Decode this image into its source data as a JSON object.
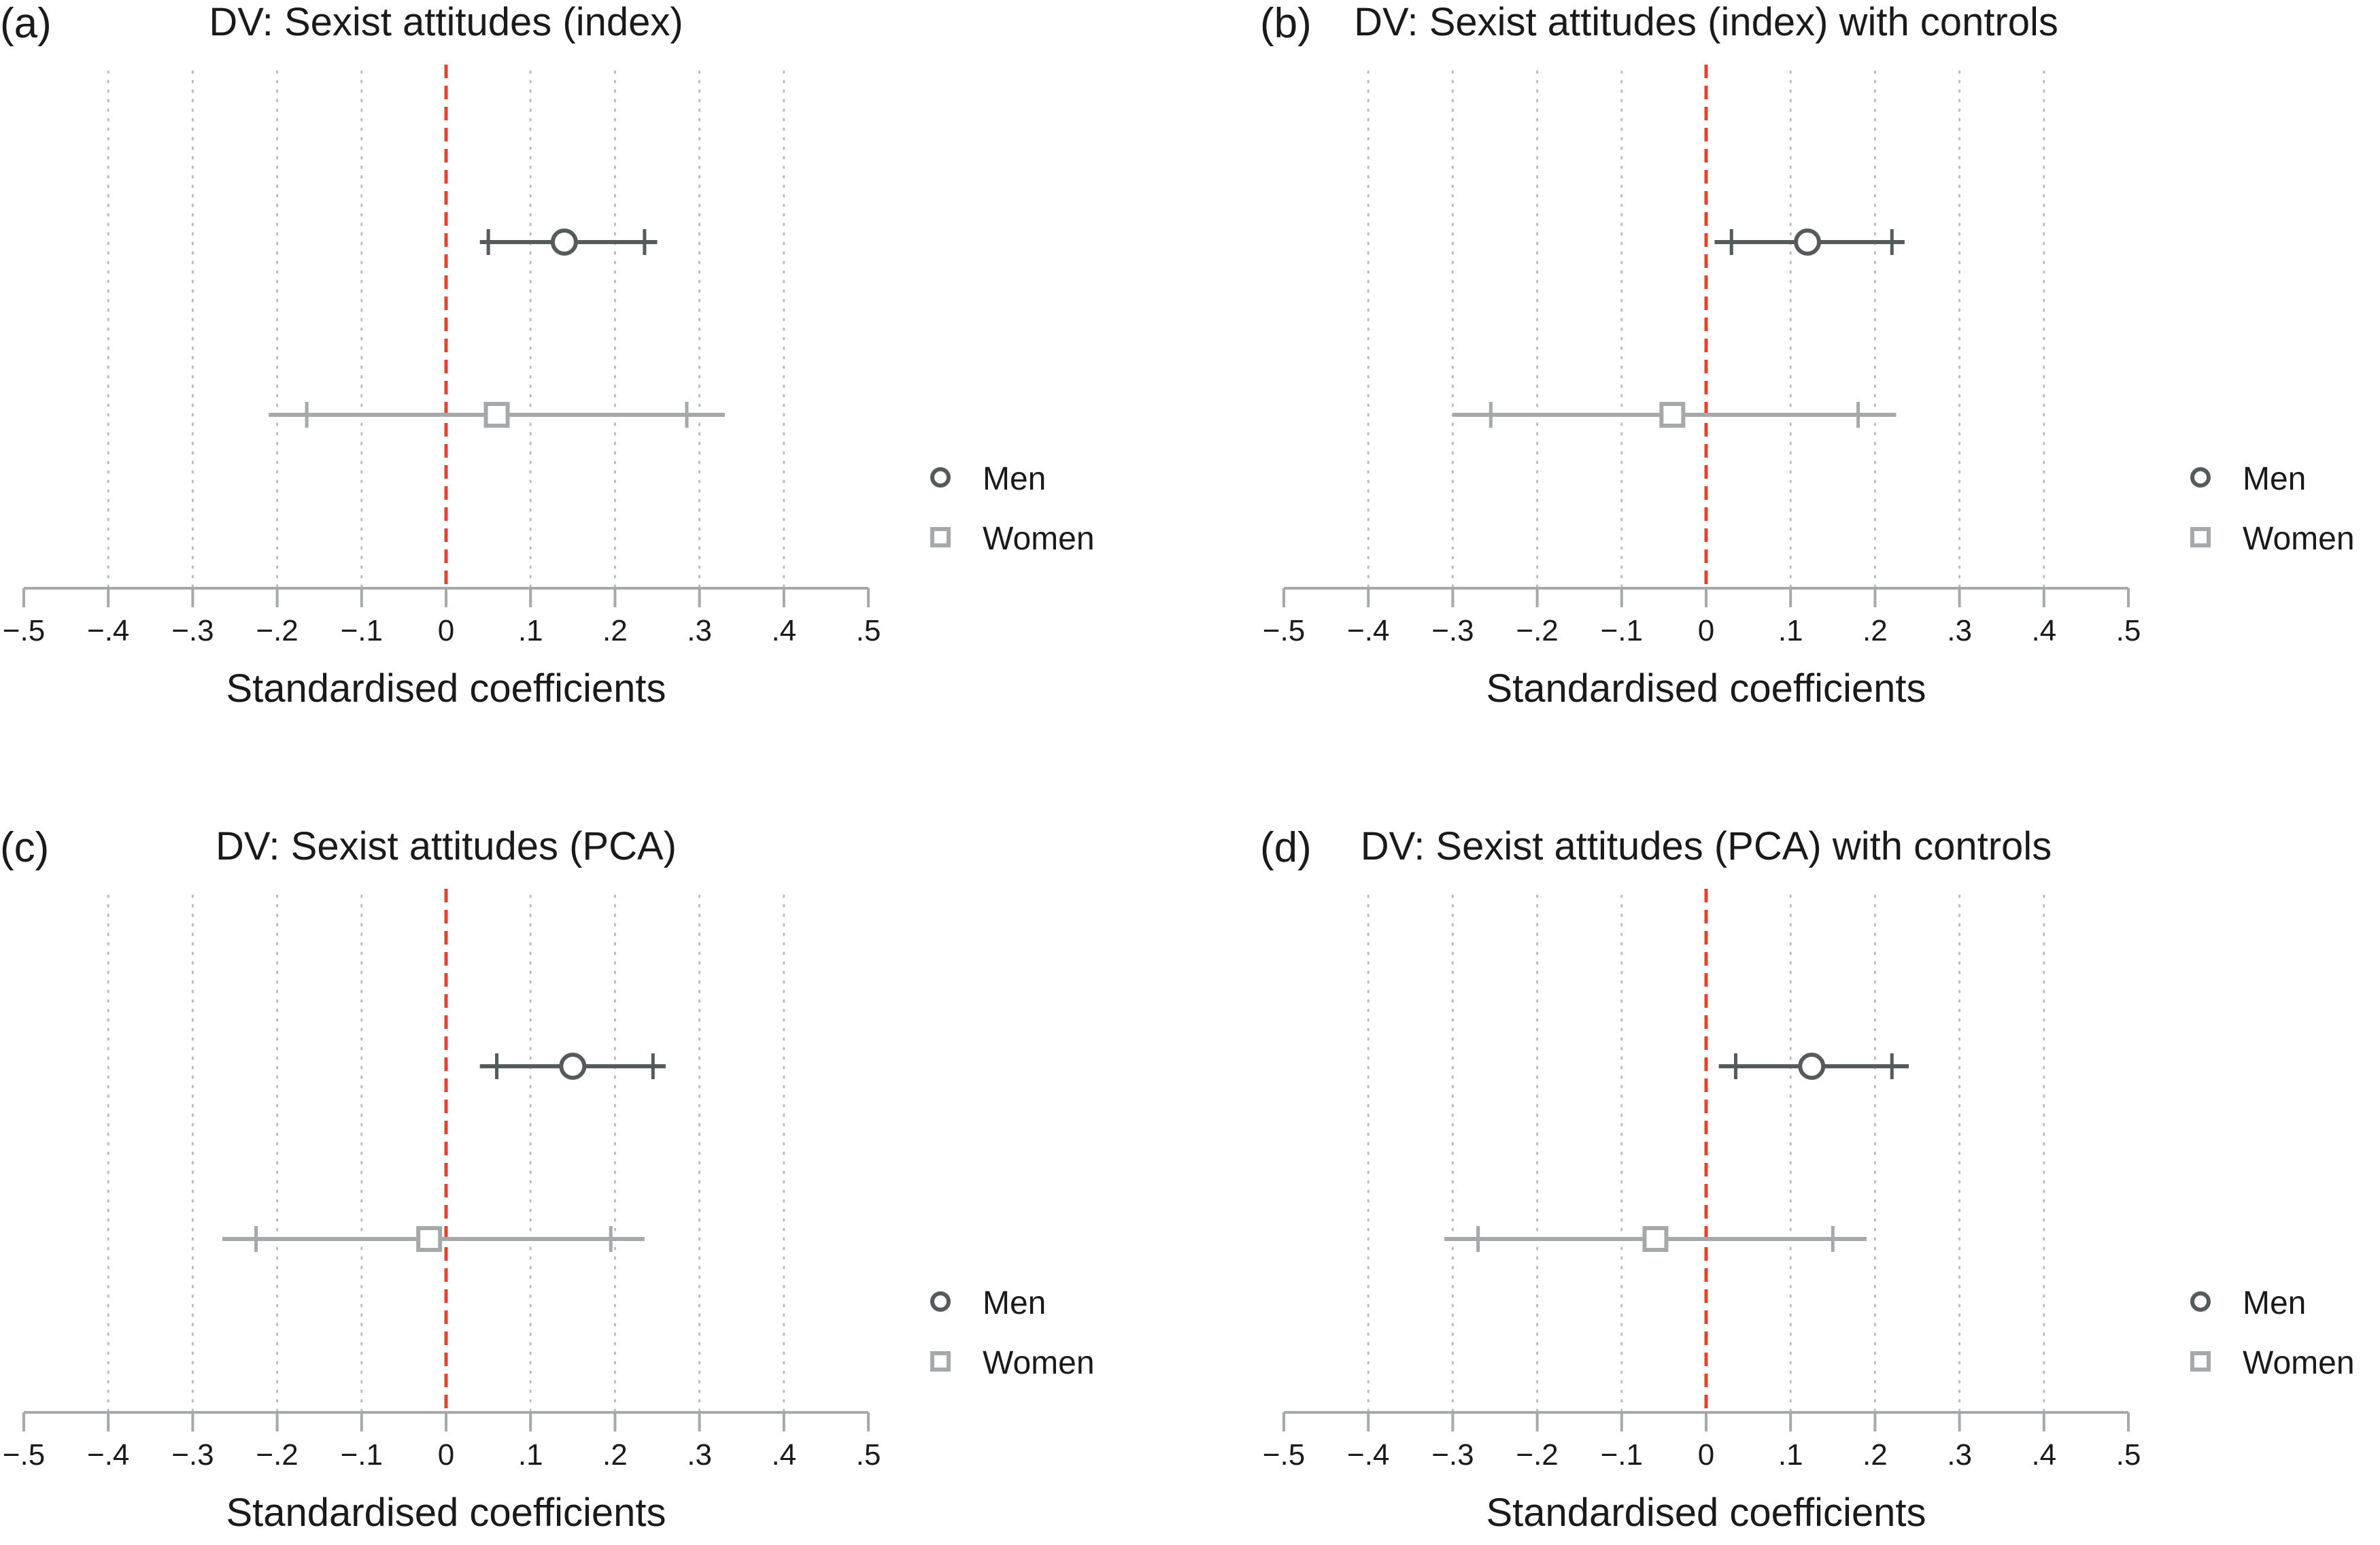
{
  "colors": {
    "men": "#555a5a",
    "women": "#a5a9a9",
    "zero_line": "#e8402a",
    "axis": "#a5a9a9",
    "grid": "#b8bcbc",
    "text": "#1a1a1a"
  },
  "legend": {
    "men": "Men",
    "women": "Women"
  },
  "chart_data": [
    {
      "type": "coefplot",
      "panel_label": "(a)",
      "title": "DV: Sexist attitudes (index)",
      "xlabel": "Standardised coefficients",
      "xlim": [
        -0.5,
        0.5
      ],
      "ticks": [
        -0.5,
        -0.4,
        -0.3,
        -0.2,
        -0.1,
        0,
        0.1,
        0.2,
        0.3,
        0.4,
        0.5
      ],
      "tick_labels": [
        "−.5",
        "−.4",
        "−.3",
        "−.2",
        "−.1",
        "0",
        ".1",
        ".2",
        ".3",
        ".4",
        ".5"
      ],
      "series": [
        {
          "name": "Men",
          "marker": "circle",
          "estimate": 0.14,
          "ci95": [
            0.04,
            0.25
          ],
          "ci90": [
            0.05,
            0.235
          ]
        },
        {
          "name": "Women",
          "marker": "square",
          "estimate": 0.06,
          "ci95": [
            -0.21,
            0.33
          ],
          "ci90": [
            -0.165,
            0.285
          ]
        }
      ]
    },
    {
      "type": "coefplot",
      "panel_label": "(b)",
      "title": "DV: Sexist attitudes (index) with controls",
      "xlabel": "Standardised coefficients",
      "xlim": [
        -0.5,
        0.5
      ],
      "ticks": [
        -0.5,
        -0.4,
        -0.3,
        -0.2,
        -0.1,
        0,
        0.1,
        0.2,
        0.3,
        0.4,
        0.5
      ],
      "tick_labels": [
        "−.5",
        "−.4",
        "−.3",
        "−.2",
        "−.1",
        "0",
        ".1",
        ".2",
        ".3",
        ".4",
        ".5"
      ],
      "series": [
        {
          "name": "Men",
          "marker": "circle",
          "estimate": 0.12,
          "ci95": [
            0.01,
            0.235
          ],
          "ci90": [
            0.03,
            0.22
          ]
        },
        {
          "name": "Women",
          "marker": "square",
          "estimate": -0.04,
          "ci95": [
            -0.3,
            0.225
          ],
          "ci90": [
            -0.255,
            0.18
          ]
        }
      ]
    },
    {
      "type": "coefplot",
      "panel_label": "(c)",
      "title": "DV: Sexist attitudes (PCA)",
      "xlabel": "Standardised coefficients",
      "xlim": [
        -0.5,
        0.5
      ],
      "ticks": [
        -0.5,
        -0.4,
        -0.3,
        -0.2,
        -0.1,
        0,
        0.1,
        0.2,
        0.3,
        0.4,
        0.5
      ],
      "tick_labels": [
        "−.5",
        "−.4",
        "−.3",
        "−.2",
        "−.1",
        "0",
        ".1",
        ".2",
        ".3",
        ".4",
        ".5"
      ],
      "series": [
        {
          "name": "Men",
          "marker": "circle",
          "estimate": 0.15,
          "ci95": [
            0.04,
            0.26
          ],
          "ci90": [
            0.06,
            0.245
          ]
        },
        {
          "name": "Women",
          "marker": "square",
          "estimate": -0.02,
          "ci95": [
            -0.265,
            0.235
          ],
          "ci90": [
            -0.225,
            0.195
          ]
        }
      ]
    },
    {
      "type": "coefplot",
      "panel_label": "(d)",
      "title": "DV: Sexist attitudes (PCA) with controls",
      "xlabel": "Standardised coefficients",
      "xlim": [
        -0.5,
        0.5
      ],
      "ticks": [
        -0.5,
        -0.4,
        -0.3,
        -0.2,
        -0.1,
        0,
        0.1,
        0.2,
        0.3,
        0.4,
        0.5
      ],
      "tick_labels": [
        "−.5",
        "−.4",
        "−.3",
        "−.2",
        "−.1",
        "0",
        ".1",
        ".2",
        ".3",
        ".4",
        ".5"
      ],
      "series": [
        {
          "name": "Men",
          "marker": "circle",
          "estimate": 0.125,
          "ci95": [
            0.015,
            0.24
          ],
          "ci90": [
            0.035,
            0.22
          ]
        },
        {
          "name": "Women",
          "marker": "square",
          "estimate": -0.06,
          "ci95": [
            -0.31,
            0.19
          ],
          "ci90": [
            -0.27,
            0.15
          ]
        }
      ]
    }
  ]
}
